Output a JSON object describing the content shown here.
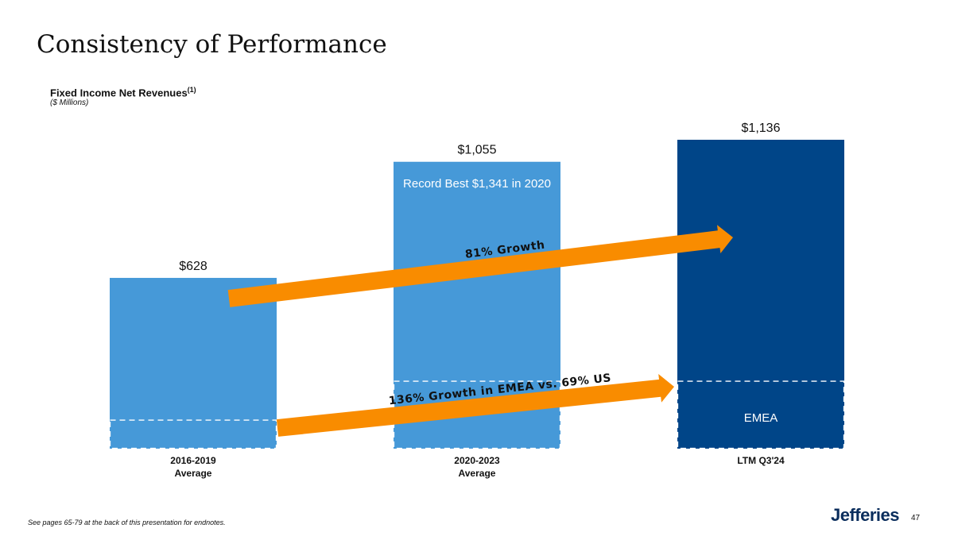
{
  "title": "Consistency of Performance",
  "subtitle": "Fixed Income Net Revenues",
  "subtitle_superscript": "(1)",
  "units": "($ Millions)",
  "footnote": "See pages 65-79 at the back of this presentation for endnotes.",
  "logo": "Jefferies",
  "page_number": "47",
  "colors": {
    "bar_light": "#4699d8",
    "bar_dark": "#004588",
    "arrow": "#f98c00",
    "dashed": "#ffffff",
    "axis_text": "#111111"
  },
  "chart_data": {
    "type": "bar",
    "categories": [
      {
        "line1": "2016-2019",
        "line2": "Average"
      },
      {
        "line1": "2020-2023",
        "line2": "Average"
      },
      {
        "line1": "LTM Q3'24",
        "line2": ""
      }
    ],
    "values": [
      628,
      1055,
      1136
    ],
    "value_labels": [
      "$628",
      "$1,055",
      "$1,136"
    ],
    "emea_segment": [
      {
        "value": 105,
        "label": ""
      },
      {
        "value": 248,
        "label": ""
      },
      {
        "value": 248,
        "label": "EMEA"
      }
    ],
    "annotations": {
      "bar_note": "Record Best $1,341 in 2020",
      "growth_arrow": "81% Growth",
      "emea_arrow": "136% Growth in EMEA vs. 69% US"
    },
    "ylim": [
      0,
      1136
    ],
    "grid": false,
    "legend": "none"
  }
}
